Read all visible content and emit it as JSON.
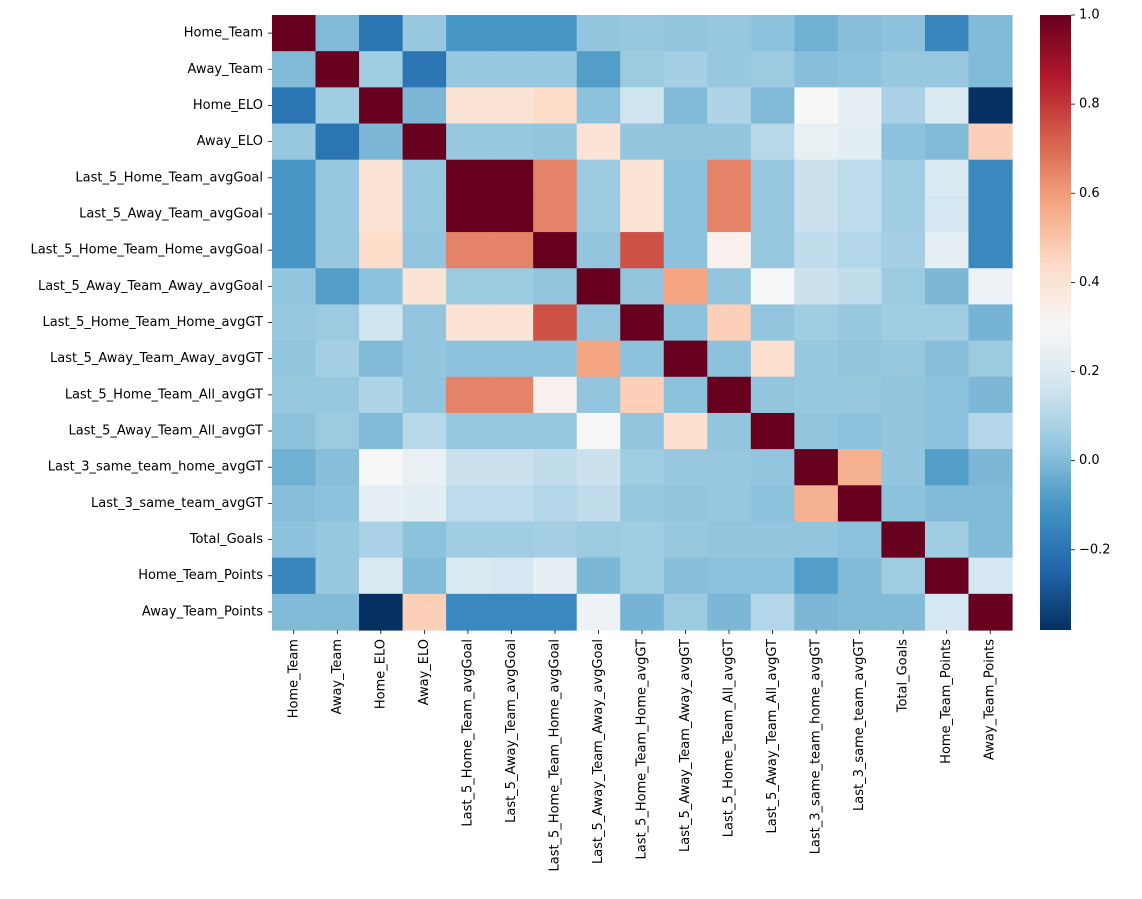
{
  "chart_data": {
    "type": "heatmap",
    "title": "",
    "xlabel": "",
    "ylabel": "",
    "colormap": "RdBu_r",
    "vmin": -0.38,
    "vmax": 1.0,
    "labels": [
      "Home_Team",
      "Away_Team",
      "Home_ELO",
      "Away_ELO",
      "Last_5_Home_Team_avgGoal",
      "Last_5_Away_Team_avgGoal",
      "Last_5_Home_Team_Home_avgGoal",
      "Last_5_Away_Team_Away_avgGoal",
      "Last_5_Home_Team_Home_avgGT",
      "Last_5_Away_Team_Away_avgGT",
      "Last_5_Home_Team_All_avgGT",
      "Last_5_Away_Team_All_avgGT",
      "Last_3_same_team_home_avgGT",
      "Last_3_same_team_avgGT",
      "Total_Goals",
      "Home_Team_Points",
      "Away_Team_Points"
    ],
    "matrix": [
      [
        1.0,
        0.0,
        -0.2,
        0.04,
        -0.1,
        -0.1,
        -0.1,
        0.03,
        0.04,
        0.03,
        0.04,
        0.02,
        -0.03,
        0.01,
        0.02,
        -0.15,
        0.0
      ],
      [
        0.0,
        1.0,
        0.06,
        -0.2,
        0.04,
        0.04,
        0.04,
        -0.08,
        0.05,
        0.07,
        0.04,
        0.05,
        0.01,
        0.02,
        0.04,
        0.04,
        0.0
      ],
      [
        -0.2,
        0.06,
        1.0,
        -0.01,
        0.4,
        0.4,
        0.43,
        0.02,
        0.16,
        0.0,
        0.09,
        0.0,
        0.3,
        0.24,
        0.08,
        0.2,
        -0.38
      ],
      [
        0.04,
        -0.2,
        -0.01,
        1.0,
        0.04,
        0.04,
        0.03,
        0.4,
        0.03,
        0.03,
        0.03,
        0.11,
        0.25,
        0.23,
        0.02,
        0.0,
        0.47
      ],
      [
        -0.1,
        0.04,
        0.4,
        0.04,
        1.0,
        1.0,
        0.65,
        0.05,
        0.4,
        0.02,
        0.65,
        0.04,
        0.15,
        0.12,
        0.06,
        0.2,
        -0.14
      ],
      [
        -0.1,
        0.04,
        0.4,
        0.04,
        1.0,
        1.0,
        0.65,
        0.05,
        0.4,
        0.02,
        0.65,
        0.04,
        0.15,
        0.12,
        0.06,
        0.18,
        -0.14
      ],
      [
        -0.1,
        0.04,
        0.43,
        0.03,
        0.65,
        0.65,
        1.0,
        0.03,
        0.75,
        0.02,
        0.33,
        0.04,
        0.13,
        0.1,
        0.07,
        0.24,
        -0.14
      ],
      [
        0.03,
        -0.08,
        0.02,
        0.4,
        0.05,
        0.05,
        0.03,
        1.0,
        0.03,
        0.58,
        0.03,
        0.3,
        0.15,
        0.13,
        0.05,
        -0.01,
        0.26
      ],
      [
        0.04,
        0.05,
        0.16,
        0.03,
        0.4,
        0.4,
        0.75,
        0.03,
        1.0,
        0.02,
        0.47,
        0.03,
        0.06,
        0.04,
        0.06,
        0.06,
        -0.02
      ],
      [
        0.03,
        0.07,
        0.0,
        0.03,
        0.02,
        0.02,
        0.02,
        0.58,
        0.02,
        1.0,
        0.02,
        0.42,
        0.04,
        0.03,
        0.04,
        0.01,
        0.05
      ],
      [
        0.04,
        0.04,
        0.09,
        0.03,
        0.65,
        0.65,
        0.33,
        0.03,
        0.47,
        0.02,
        1.0,
        0.03,
        0.04,
        0.04,
        0.03,
        0.02,
        -0.01
      ],
      [
        0.02,
        0.05,
        0.0,
        0.11,
        0.04,
        0.04,
        0.04,
        0.3,
        0.03,
        0.42,
        0.03,
        1.0,
        0.03,
        0.02,
        0.03,
        0.02,
        0.1
      ],
      [
        -0.03,
        0.01,
        0.3,
        0.25,
        0.15,
        0.15,
        0.13,
        0.15,
        0.06,
        0.04,
        0.04,
        0.03,
        1.0,
        0.55,
        0.03,
        -0.08,
        -0.01
      ],
      [
        0.01,
        0.02,
        0.24,
        0.23,
        0.12,
        0.12,
        0.1,
        0.13,
        0.04,
        0.03,
        0.04,
        0.02,
        0.55,
        1.0,
        0.02,
        0.0,
        0.0
      ],
      [
        0.02,
        0.04,
        0.08,
        0.02,
        0.06,
        0.06,
        0.07,
        0.05,
        0.06,
        0.04,
        0.03,
        0.03,
        0.03,
        0.02,
        1.0,
        0.06,
        0.0
      ],
      [
        -0.15,
        0.04,
        0.2,
        0.0,
        0.2,
        0.18,
        0.24,
        -0.01,
        0.06,
        0.01,
        0.02,
        0.02,
        -0.08,
        0.0,
        0.06,
        1.0,
        0.18
      ],
      [
        0.0,
        0.0,
        -0.38,
        0.47,
        -0.14,
        -0.14,
        -0.14,
        0.26,
        -0.02,
        0.05,
        -0.01,
        0.1,
        -0.01,
        0.0,
        0.0,
        0.18,
        1.0
      ]
    ],
    "colorbar": {
      "ticks": [
        -0.2,
        0.0,
        0.2,
        0.4,
        0.6,
        0.8,
        1.0
      ],
      "tick_labels": [
        "−0.2",
        "0.0",
        "0.2",
        "0.4",
        "0.6",
        "0.8",
        "1.0"
      ]
    }
  }
}
